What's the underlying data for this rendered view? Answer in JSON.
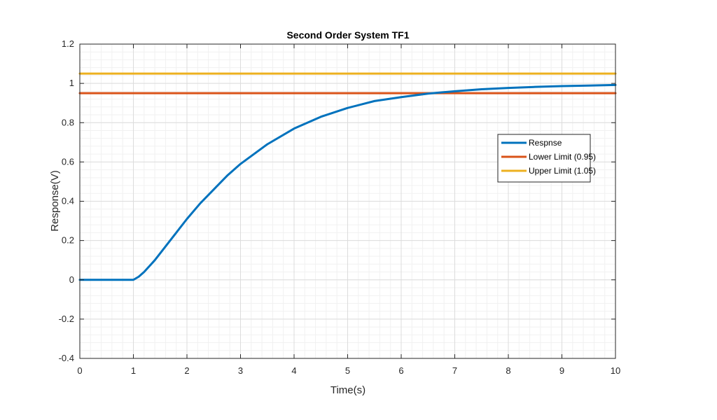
{
  "chart_data": {
    "type": "line",
    "title": "Second Order System TF1",
    "xlabel": "Time(s)",
    "ylabel": "Response(V)",
    "xlim": [
      0,
      10
    ],
    "ylim": [
      -0.4,
      1.2
    ],
    "x_ticks": [
      "0",
      "1",
      "2",
      "3",
      "4",
      "5",
      "6",
      "7",
      "8",
      "9",
      "10"
    ],
    "y_ticks": [
      "-0.4",
      "-0.2",
      "0",
      "0.2",
      "0.4",
      "0.6",
      "0.8",
      "1",
      "1.2"
    ],
    "grid": true,
    "minor_grid": true,
    "legend_position": "right",
    "series": [
      {
        "name": "Respnse",
        "color": "#0072BD",
        "x": [
          0,
          0.5,
          1.0,
          1.1,
          1.2,
          1.3,
          1.4,
          1.6,
          1.8,
          2.0,
          2.25,
          2.5,
          2.75,
          3.0,
          3.5,
          4.0,
          4.5,
          5.0,
          5.5,
          6.0,
          6.5,
          7.0,
          7.5,
          8.0,
          8.5,
          9.0,
          9.5,
          10.0
        ],
        "y": [
          0,
          0,
          0,
          0.016,
          0.04,
          0.07,
          0.1,
          0.17,
          0.24,
          0.31,
          0.39,
          0.46,
          0.53,
          0.59,
          0.69,
          0.77,
          0.83,
          0.875,
          0.91,
          0.93,
          0.948,
          0.96,
          0.97,
          0.977,
          0.982,
          0.986,
          0.989,
          0.992
        ]
      },
      {
        "name": "Lower Limit (0.95)",
        "color": "#D95319",
        "x": [
          0,
          10
        ],
        "y": [
          0.95,
          0.95
        ]
      },
      {
        "name": "Upper Limit (1.05)",
        "color": "#EDB120",
        "x": [
          0,
          10
        ],
        "y": [
          1.05,
          1.05
        ]
      }
    ]
  }
}
